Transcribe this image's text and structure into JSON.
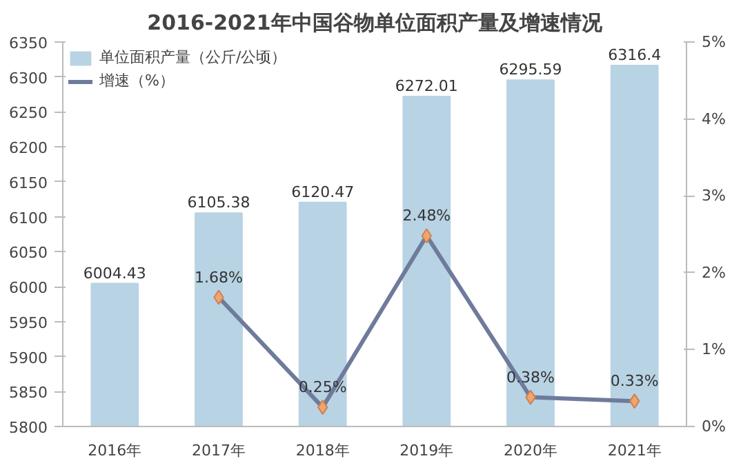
{
  "chart_data": {
    "type": "bar",
    "title": "2016-2021年中国谷物单位面积产量及增速情况",
    "categories": [
      "2016年",
      "2017年",
      "2018年",
      "2019年",
      "2020年",
      "2021年"
    ],
    "series": [
      {
        "name": "单位面积产量（公斤/公顷）",
        "color": "#b8d3e4",
        "values": [
          6004.43,
          6105.38,
          6120.47,
          6272.01,
          6295.59,
          6316.4
        ],
        "value_labels": [
          "6004.43",
          "6105.38",
          "6120.47",
          "6272.01",
          "6295.59",
          "6316.4"
        ]
      },
      {
        "name": "增速（%）",
        "type": "line",
        "axis": "y2",
        "color": "#6e7b9b",
        "values": [
          null,
          1.68,
          0.25,
          2.48,
          0.38,
          0.33
        ],
        "value_labels": [
          null,
          "1.68%",
          "0.25%",
          "2.48%",
          "0.38%",
          "0.33%"
        ]
      }
    ],
    "ylim": [
      5800,
      6350
    ],
    "yticks": [
      5800,
      5850,
      5900,
      5950,
      6000,
      6050,
      6100,
      6150,
      6200,
      6250,
      6300,
      6350
    ],
    "y2lim": [
      0,
      5
    ],
    "y2ticks": [
      {
        "value": 0,
        "label": "0%"
      },
      {
        "value": 1,
        "label": "1%"
      },
      {
        "value": 2,
        "label": "2%"
      },
      {
        "value": 3,
        "label": "3%"
      },
      {
        "value": 4,
        "label": "4%"
      },
      {
        "value": 5,
        "label": "5%"
      }
    ],
    "marker": "diamond",
    "line_style": "solid",
    "legend": "top",
    "grid": false
  }
}
